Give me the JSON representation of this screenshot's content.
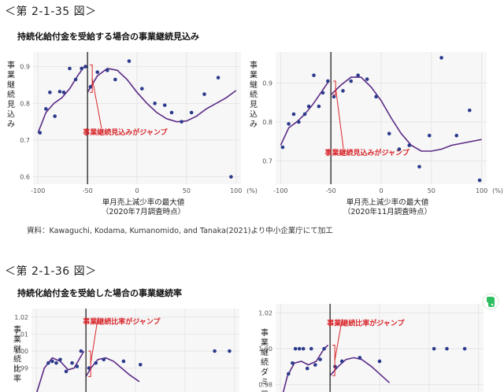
{
  "figures": [
    {
      "title": "＜第 2-1-35 図＞",
      "subtitle": "持続化給付金を受給する場合の事業継続見込み",
      "source": "資料：Kawaguchi, Kodama, Kumanomido, and Tanaka(2021)より中小企業庁にて加工"
    },
    {
      "title": "＜第 2-1-36 図＞",
      "subtitle": "持続化給付金を受給した場合の事業継続率"
    }
  ],
  "colors": {
    "points": "#2b3a8c",
    "curve": "#5b2a86",
    "annotation": "#d8262b",
    "grid": "#e6e6e6",
    "panel_bg": "#f7f7f7"
  },
  "chart_data": [
    {
      "type": "scatter",
      "ylabel": "事業継続見込み",
      "xlabel": "単月売上減少率の最大値",
      "xlabel2": "（2020年7月調査時点）",
      "x_unit": "(%)",
      "xlim": [
        -105,
        105
      ],
      "ylim": [
        0.58,
        0.94
      ],
      "xticks": [
        -100,
        -50,
        0,
        50,
        100
      ],
      "yticks": [
        0.6,
        0.7,
        0.8,
        0.9
      ],
      "ytick_labels": [
        "0.6",
        "0.7",
        "0.8",
        "0.9"
      ],
      "cutoff_x": -50,
      "annotation": "事業継続見込みがジャンプ",
      "points": [
        [
          -98,
          0.72
        ],
        [
          -92,
          0.785
        ],
        [
          -88,
          0.83
        ],
        [
          -83,
          0.765
        ],
        [
          -78,
          0.832
        ],
        [
          -74,
          0.83
        ],
        [
          -68,
          0.895
        ],
        [
          -62,
          0.865
        ],
        [
          -56,
          0.895
        ],
        [
          -52,
          0.9
        ],
        [
          -47,
          0.845
        ],
        [
          -40,
          0.885
        ],
        [
          -30,
          0.89
        ],
        [
          -22,
          0.865
        ],
        [
          -8,
          0.915
        ],
        [
          5,
          0.84
        ],
        [
          18,
          0.8
        ],
        [
          28,
          0.795
        ],
        [
          35,
          0.775
        ],
        [
          45,
          0.75
        ],
        [
          55,
          0.775
        ],
        [
          68,
          0.825
        ],
        [
          82,
          0.87
        ],
        [
          95,
          0.6
        ]
      ],
      "curve_left": [
        [
          -100,
          0.72
        ],
        [
          -92,
          0.775
        ],
        [
          -84,
          0.8
        ],
        [
          -76,
          0.815
        ],
        [
          -68,
          0.84
        ],
        [
          -60,
          0.875
        ],
        [
          -52,
          0.905
        ]
      ],
      "curve_right": [
        [
          -50,
          0.83
        ],
        [
          -40,
          0.875
        ],
        [
          -30,
          0.895
        ],
        [
          -20,
          0.89
        ],
        [
          -10,
          0.865
        ],
        [
          0,
          0.83
        ],
        [
          10,
          0.8
        ],
        [
          20,
          0.775
        ],
        [
          30,
          0.758
        ],
        [
          40,
          0.75
        ],
        [
          50,
          0.752
        ],
        [
          60,
          0.765
        ],
        [
          70,
          0.785
        ],
        [
          80,
          0.8
        ],
        [
          90,
          0.815
        ],
        [
          100,
          0.835
        ]
      ]
    },
    {
      "type": "scatter",
      "ylabel": "事業継続見込み",
      "xlabel": "単月売上減少率の最大値",
      "xlabel2": "（2020年11月調査時点）",
      "x_unit": "(%)",
      "xlim": [
        -105,
        105
      ],
      "ylim": [
        0.64,
        0.98
      ],
      "xticks": [
        -100,
        -50,
        0,
        50,
        100
      ],
      "yticks": [
        0.7,
        0.8,
        0.9
      ],
      "ytick_labels": [
        "0.7",
        "0.8",
        "0.9"
      ],
      "cutoff_x": -50,
      "annotation": "事業継続見込みがジャンプ",
      "points": [
        [
          -98,
          0.735
        ],
        [
          -92,
          0.795
        ],
        [
          -87,
          0.82
        ],
        [
          -82,
          0.8
        ],
        [
          -76,
          0.82
        ],
        [
          -72,
          0.84
        ],
        [
          -67,
          0.92
        ],
        [
          -62,
          0.84
        ],
        [
          -58,
          0.875
        ],
        [
          -53,
          0.905
        ],
        [
          -47,
          0.865
        ],
        [
          -38,
          0.88
        ],
        [
          -30,
          0.905
        ],
        [
          -23,
          0.92
        ],
        [
          -14,
          0.91
        ],
        [
          -5,
          0.865
        ],
        [
          8,
          0.77
        ],
        [
          18,
          0.73
        ],
        [
          28,
          0.74
        ],
        [
          38,
          0.685
        ],
        [
          48,
          0.765
        ],
        [
          60,
          0.965
        ],
        [
          75,
          0.765
        ],
        [
          88,
          0.83
        ],
        [
          98,
          0.65
        ]
      ],
      "curve_left": [
        [
          -100,
          0.74
        ],
        [
          -92,
          0.785
        ],
        [
          -84,
          0.8
        ],
        [
          -76,
          0.82
        ],
        [
          -68,
          0.845
        ],
        [
          -60,
          0.875
        ],
        [
          -52,
          0.905
        ]
      ],
      "curve_right": [
        [
          -50,
          0.87
        ],
        [
          -40,
          0.895
        ],
        [
          -30,
          0.915
        ],
        [
          -20,
          0.915
        ],
        [
          -10,
          0.89
        ],
        [
          0,
          0.855
        ],
        [
          10,
          0.81
        ],
        [
          20,
          0.77
        ],
        [
          30,
          0.74
        ],
        [
          40,
          0.725
        ],
        [
          50,
          0.725
        ],
        [
          60,
          0.73
        ],
        [
          70,
          0.74
        ],
        [
          80,
          0.745
        ],
        [
          90,
          0.75
        ],
        [
          100,
          0.755
        ]
      ]
    },
    {
      "type": "scatter",
      "ylabel": "事業継続比率",
      "xlim": [
        -105,
        105
      ],
      "ylim": [
        0.975,
        1.025
      ],
      "yticks": [
        0.99,
        1.0,
        1.01,
        1.02
      ],
      "ytick_labels": [
        "0.99",
        "1.00",
        "1.01",
        "1.02"
      ],
      "cutoff_x": -50,
      "annotation": "事業継続比率がジャンプ",
      "points": [
        [
          -88,
          0.993
        ],
        [
          -84,
          0.994
        ],
        [
          -80,
          0.993
        ],
        [
          -76,
          0.995
        ],
        [
          -70,
          0.988
        ],
        [
          -64,
          0.993
        ],
        [
          -59,
          0.991
        ],
        [
          -55,
          1.0
        ],
        [
          -47,
          0.99
        ],
        [
          -40,
          0.993
        ],
        [
          -32,
          0.995
        ],
        [
          -12,
          0.994
        ],
        [
          5,
          0.992
        ],
        [
          80,
          1.0
        ],
        [
          95,
          1.0
        ]
      ],
      "curve_left": [
        [
          -100,
          0.975
        ],
        [
          -92,
          0.99
        ],
        [
          -84,
          0.996
        ],
        [
          -76,
          0.994
        ],
        [
          -68,
          0.989
        ],
        [
          -62,
          0.99
        ],
        [
          -56,
          0.996
        ],
        [
          -52,
          1.0
        ]
      ],
      "curve_right": [
        [
          -50,
          0.985
        ],
        [
          -45,
          0.99
        ],
        [
          -38,
          0.995
        ],
        [
          -30,
          0.996
        ],
        [
          -22,
          0.994
        ],
        [
          -14,
          0.99
        ],
        [
          -6,
          0.986
        ],
        [
          4,
          0.982
        ]
      ]
    },
    {
      "type": "scatter",
      "ylabel": "事業継続ダミー",
      "xlim": [
        -105,
        105
      ],
      "ylim": [
        0.975,
        1.025
      ],
      "yticks": [
        0.98,
        1.0,
        1.02
      ],
      "ytick_labels": [
        "0.98",
        "1.00",
        "1.02"
      ],
      "cutoff_x": -50,
      "annotation": "事業継続比率がジャンプ",
      "points": [
        [
          -92,
          0.986
        ],
        [
          -88,
          0.992
        ],
        [
          -85,
          1.0
        ],
        [
          -81,
          1.0
        ],
        [
          -77,
          1.0
        ],
        [
          -73,
          0.989
        ],
        [
          -69,
          1.0
        ],
        [
          -65,
          0.991
        ],
        [
          -60,
          0.994
        ],
        [
          -56,
          1.0
        ],
        [
          -45,
          0.99
        ],
        [
          -38,
          0.993
        ],
        [
          -20,
          0.995
        ],
        [
          0,
          0.993
        ],
        [
          55,
          1.0
        ],
        [
          68,
          1.0
        ],
        [
          86,
          1.0
        ]
      ],
      "curve_left": [
        [
          -100,
          0.97
        ],
        [
          -93,
          0.985
        ],
        [
          -86,
          0.992
        ],
        [
          -79,
          0.993
        ],
        [
          -72,
          0.991
        ],
        [
          -64,
          0.993
        ],
        [
          -56,
          1.0
        ],
        [
          -52,
          1.002
        ]
      ],
      "curve_right": [
        [
          -50,
          0.985
        ],
        [
          -42,
          0.99
        ],
        [
          -34,
          0.994
        ],
        [
          -26,
          0.995
        ],
        [
          -18,
          0.994
        ],
        [
          -8,
          0.99
        ],
        [
          2,
          0.985
        ],
        [
          10,
          0.981
        ]
      ]
    }
  ]
}
